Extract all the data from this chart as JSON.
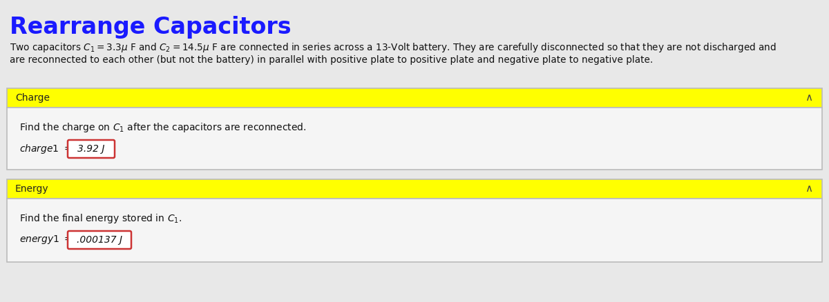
{
  "title": "Rearrange Capacitors",
  "title_color": "#1a1aff",
  "background_color": "#e8e8e8",
  "description_line1": "Two capacitors $C_1 = 3.3\\mu$ F and $C_2 = 14.5\\mu$ F are connected in series across a 13-Volt battery. They are carefully disconnected so that they are not discharged and",
  "description_line2": "are reconnected to each other (but not the battery) in parallel with positive plate to positive plate and negative plate to negative plate.",
  "section1_label": "Charge",
  "section1_header_bg": "#ffff00",
  "section1_question": "Find the charge on $C_1$ after the capacitors are reconnected.",
  "section1_answer_label": "charge1 = ",
  "section1_answer_value": "3.92 J",
  "section2_label": "Energy",
  "section2_header_bg": "#ffff00",
  "section2_question": "Find the final energy stored in $C_1$.",
  "section2_answer_label": "energy1 = ",
  "section2_answer_value": ".000137 J",
  "answer_box_color": "#cc3333",
  "section_border_color": "#bbbbbb",
  "section_body_bg": "#f5f5f5",
  "chevron": "∧"
}
